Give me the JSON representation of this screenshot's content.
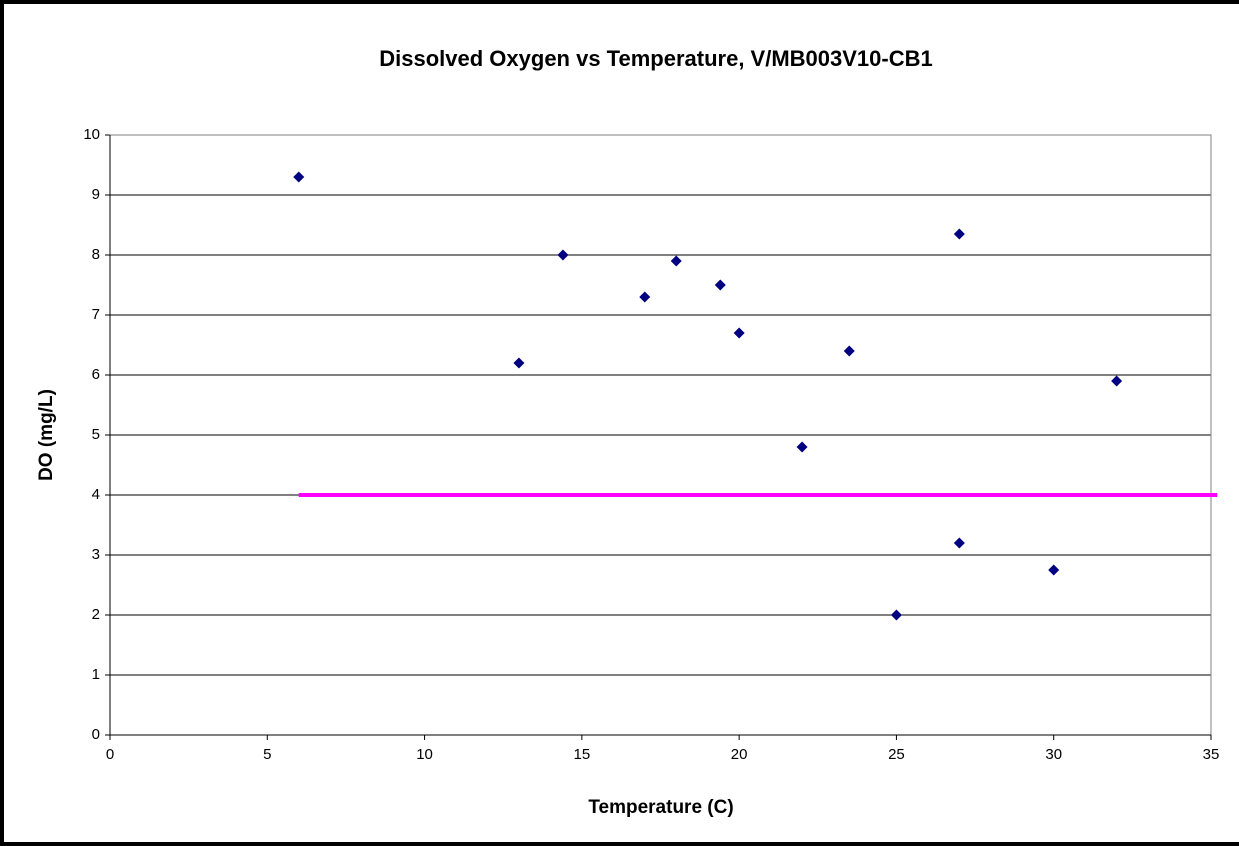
{
  "chart_data": {
    "type": "scatter",
    "title": "Dissolved Oxygen vs Temperature, V/MB003V10-CB1",
    "x_label": "Temperature (C)",
    "y_label": "DO (mg/L)",
    "series": [
      {
        "color": "#000080",
        "x": [
          6,
          13,
          14.4,
          17,
          18,
          19.4,
          20,
          22,
          23.5,
          25,
          27,
          27,
          30,
          32
        ],
        "values": [
          9.3,
          6.2,
          8.0,
          7.3,
          7.9,
          7.5,
          6.7,
          4.8,
          6.4,
          2.0,
          8.35,
          3.2,
          2.75,
          5.9
        ]
      },
      {
        "type": "line",
        "color": "#ff00ff",
        "x": [
          6,
          35.2
        ],
        "values": [
          4,
          4
        ]
      }
    ],
    "xlim": [
      0,
      35
    ],
    "xticks": [
      0,
      5,
      10,
      15,
      20,
      25,
      30,
      35
    ],
    "ylim": [
      0,
      10
    ],
    "yticks": [
      0,
      1,
      2,
      3,
      4,
      5,
      6,
      7,
      8,
      9,
      10
    ],
    "grid": true
  }
}
